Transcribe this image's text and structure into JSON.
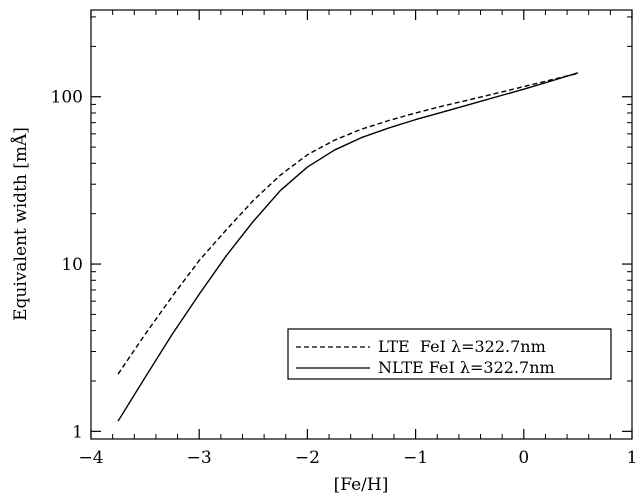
{
  "chart_data": {
    "type": "line",
    "title": "",
    "xlabel": "[Fe/H]",
    "ylabel": "Equivalent width [mÅ]",
    "xlim": [
      -4,
      1
    ],
    "ylim": [
      0.9,
      330
    ],
    "yscale": "log",
    "grid": false,
    "legend_position": "lower-right",
    "x_ticks": [
      -4,
      -3,
      -2,
      -1,
      0,
      1
    ],
    "x_tick_labels": [
      "−4",
      "−3",
      "−2",
      "−1",
      "0",
      "1"
    ],
    "y_ticks": [
      1,
      10,
      100
    ],
    "y_tick_labels": [
      "1",
      "10",
      "100"
    ],
    "series": [
      {
        "name": "LTE  FeI λ=322.7nm",
        "style": "dashed",
        "color": "#000000",
        "x": [
          -3.75,
          -3.5,
          -3.25,
          -3.0,
          -2.75,
          -2.5,
          -2.25,
          -2.0,
          -1.75,
          -1.5,
          -1.25,
          -1.0,
          -0.75,
          -0.5,
          -0.25,
          0.0,
          0.25,
          0.5
        ],
        "y": [
          2.2,
          3.8,
          6.4,
          10.5,
          16.0,
          24.0,
          34.0,
          45.0,
          55.0,
          64.0,
          72.0,
          80.0,
          88.0,
          96.0,
          105.0,
          115.0,
          126.0,
          138.0
        ]
      },
      {
        "name": "NLTE FeI λ=322.7nm",
        "style": "solid",
        "color": "#000000",
        "x": [
          -3.75,
          -3.5,
          -3.25,
          -3.0,
          -2.75,
          -2.5,
          -2.25,
          -2.0,
          -1.75,
          -1.5,
          -1.25,
          -1.0,
          -0.75,
          -0.5,
          -0.25,
          0.0,
          0.25,
          0.5
        ],
        "y": [
          1.15,
          2.1,
          3.8,
          6.6,
          11.2,
          18.0,
          27.5,
          38.0,
          48.0,
          57.0,
          65.0,
          73.0,
          81.0,
          90.0,
          100.0,
          111.0,
          124.0,
          139.0
        ]
      }
    ]
  }
}
